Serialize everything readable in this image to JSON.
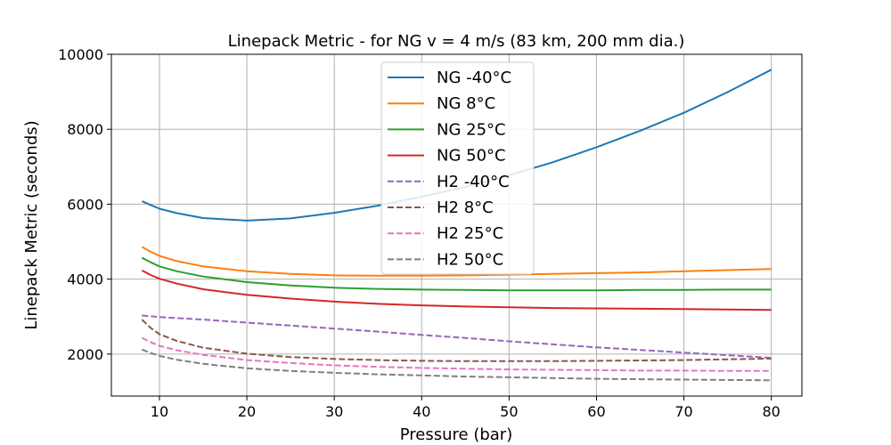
{
  "chart_data": {
    "type": "line",
    "title": "Linepack Metric - for NG v = 4 m/s (83 km, 200 mm dia.)",
    "xlabel": "Pressure (bar)",
    "ylabel": "Linepack Metric (seconds)",
    "xlim": [
      4.5,
      83.5
    ],
    "ylim": [
      880,
      10000
    ],
    "xticks": [
      10,
      20,
      30,
      40,
      50,
      60,
      70,
      80
    ],
    "xtick_labels": [
      "10",
      "20",
      "30",
      "40",
      "50",
      "60",
      "70",
      "80"
    ],
    "yticks": [
      2000,
      4000,
      6000,
      8000,
      10000
    ],
    "ytick_labels": [
      "2000",
      "4000",
      "6000",
      "8000",
      "10000"
    ],
    "grid": true,
    "legend_position": "upper-center",
    "x": [
      8,
      9,
      10,
      12,
      15,
      20,
      25,
      30,
      35,
      40,
      45,
      50,
      55,
      60,
      65,
      70,
      75,
      80
    ],
    "series": [
      {
        "name": "NG  -40°C",
        "color": "#1f77b4",
        "dash": "solid",
        "values": [
          6080,
          5980,
          5880,
          5760,
          5630,
          5560,
          5620,
          5770,
          5960,
          6200,
          6460,
          6770,
          7120,
          7520,
          7960,
          8440,
          8990,
          9590
        ]
      },
      {
        "name": "NG    8°C",
        "color": "#ff7f0e",
        "dash": "solid",
        "values": [
          4860,
          4730,
          4620,
          4480,
          4340,
          4210,
          4140,
          4100,
          4090,
          4090,
          4100,
          4120,
          4140,
          4160,
          4180,
          4210,
          4240,
          4270
        ]
      },
      {
        "name": "NG   25°C",
        "color": "#2ca02c",
        "dash": "solid",
        "values": [
          4570,
          4450,
          4340,
          4210,
          4070,
          3920,
          3830,
          3770,
          3740,
          3720,
          3710,
          3700,
          3700,
          3700,
          3710,
          3710,
          3720,
          3720
        ]
      },
      {
        "name": "NG   50°C",
        "color": "#d62728",
        "dash": "solid",
        "values": [
          4230,
          4110,
          4010,
          3880,
          3730,
          3580,
          3480,
          3400,
          3340,
          3300,
          3270,
          3250,
          3230,
          3220,
          3210,
          3200,
          3190,
          3180
        ]
      },
      {
        "name": "H2  -40°C",
        "color": "#9467bd",
        "dash": "dashed",
        "values": [
          3030,
          3010,
          2990,
          2960,
          2920,
          2840,
          2760,
          2680,
          2600,
          2510,
          2430,
          2340,
          2260,
          2180,
          2110,
          2040,
          1970,
          1900
        ]
      },
      {
        "name": "H2    8°C",
        "color": "#8c564b",
        "dash": "dashed",
        "values": [
          2920,
          2700,
          2530,
          2350,
          2170,
          2010,
          1920,
          1870,
          1840,
          1820,
          1810,
          1810,
          1810,
          1820,
          1830,
          1840,
          1860,
          1880
        ]
      },
      {
        "name": "H2   25°C",
        "color": "#e377c2",
        "dash": "dashed",
        "values": [
          2430,
          2320,
          2220,
          2100,
          1980,
          1840,
          1760,
          1700,
          1660,
          1630,
          1610,
          1590,
          1580,
          1570,
          1560,
          1560,
          1550,
          1550
        ]
      },
      {
        "name": "H2   50°C",
        "color": "#7f7f7f",
        "dash": "dashed",
        "values": [
          2120,
          2030,
          1950,
          1850,
          1740,
          1620,
          1550,
          1500,
          1460,
          1430,
          1400,
          1380,
          1360,
          1340,
          1330,
          1320,
          1310,
          1300
        ]
      }
    ]
  }
}
